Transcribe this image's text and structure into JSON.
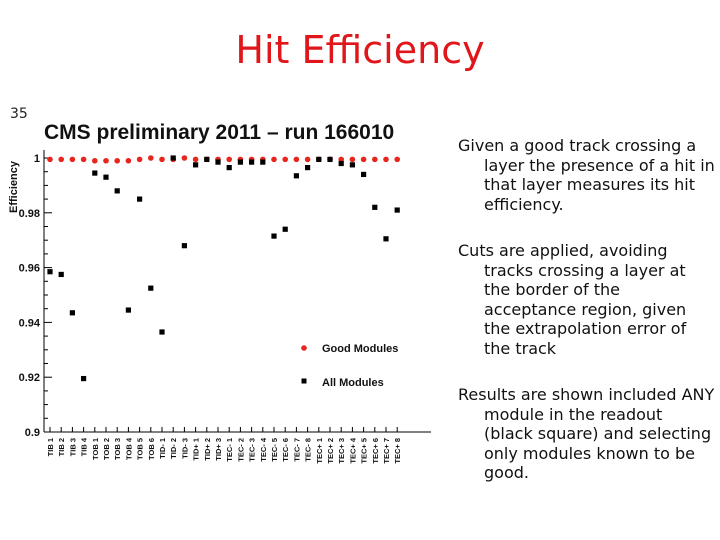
{
  "slide": {
    "title": "Hit Efficiency",
    "number": "35"
  },
  "notes": [
    "Given a good track crossing a layer the presence of a hit in that layer measures its hit efficiency.",
    "Cuts are applied, avoiding tracks crossing a layer at the border of the acceptance region, given the extrapolation error of the track",
    "Results are shown included ANY module in the readout (black square) and selecting only modules known to be good."
  ],
  "colors": {
    "title": "#e0161b",
    "good": "#e8261e",
    "all": "#000000"
  },
  "chart_data": {
    "type": "scatter",
    "title": "CMS preliminary 2011 – run 166010",
    "ylabel": "Efficiency",
    "xlabel": "",
    "ylim": [
      0.9,
      1.0
    ],
    "yticks": [
      0.9,
      0.92,
      0.94,
      0.96,
      0.98,
      1.0
    ],
    "ytick_labels": [
      "0.9",
      "0.92",
      "0.94",
      "0.96",
      "0.98",
      "1"
    ],
    "grid": false,
    "legend_position": "bottom-right",
    "categories": [
      "TIB 1",
      "TIB 2",
      "TIB 3",
      "TIB 4",
      "TOB 1",
      "TOB 2",
      "TOB 3",
      "TOB 4",
      "TOB 5",
      "TOB 6",
      "TID- 1",
      "TID- 2",
      "TID- 3",
      "TID+ 1",
      "TID+ 2",
      "TID+ 3",
      "TEC- 1",
      "TEC- 2",
      "TEC- 3",
      "TEC- 4",
      "TEC- 5",
      "TEC- 6",
      "TEC- 7",
      "TEC- 8",
      "TEC+ 1",
      "TEC+ 2",
      "TEC+ 3",
      "TEC+ 4",
      "TEC+ 5",
      "TEC+ 6",
      "TEC+ 7",
      "TEC+ 8"
    ],
    "series": [
      {
        "name": "Good Modules",
        "marker": "circle",
        "color": "#e8261e",
        "values": [
          0.9995,
          0.9995,
          0.9995,
          0.9995,
          0.999,
          0.999,
          0.999,
          0.999,
          0.9995,
          1.0,
          0.9995,
          0.9995,
          1.0,
          0.9995,
          0.9995,
          0.9995,
          0.9995,
          0.9995,
          0.9995,
          0.9995,
          0.9995,
          0.9995,
          0.9995,
          0.9995,
          0.9995,
          0.9995,
          0.9995,
          0.9995,
          0.9995,
          0.9995,
          0.9995,
          0.9995
        ]
      },
      {
        "name": "All Modules",
        "marker": "square",
        "color": "#000000",
        "values": [
          0.9585,
          0.9575,
          0.9435,
          0.9195,
          0.9945,
          0.993,
          0.988,
          0.9445,
          0.985,
          0.9525,
          0.9365,
          1.0,
          0.968,
          0.9975,
          0.9995,
          0.9985,
          0.9965,
          0.9985,
          0.9985,
          0.9985,
          0.9715,
          0.974,
          0.9935,
          0.9965,
          0.9995,
          0.9995,
          0.998,
          0.9975,
          0.994,
          0.982,
          0.9705,
          0.981
        ]
      }
    ]
  }
}
